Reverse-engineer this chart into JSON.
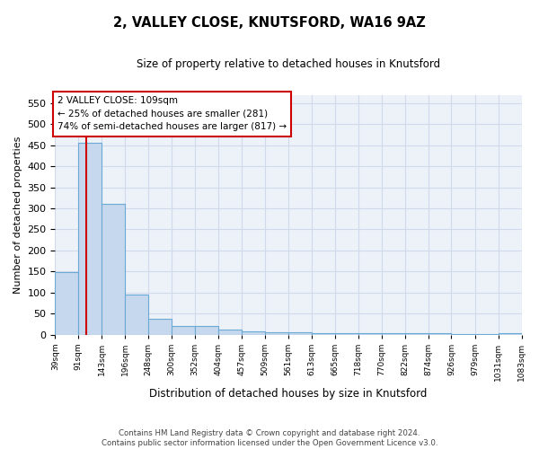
{
  "title_line1": "2, VALLEY CLOSE, KNUTSFORD, WA16 9AZ",
  "title_line2": "Size of property relative to detached houses in Knutsford",
  "xlabel": "Distribution of detached houses by size in Knutsford",
  "ylabel": "Number of detached properties",
  "bin_edges": [
    39,
    91,
    143,
    196,
    248,
    300,
    352,
    404,
    457,
    509,
    561,
    613,
    665,
    718,
    770,
    822,
    874,
    926,
    979,
    1031,
    1083
  ],
  "bar_heights": [
    148,
    455,
    310,
    95,
    38,
    20,
    20,
    12,
    8,
    5,
    5,
    4,
    4,
    4,
    3,
    3,
    3,
    2,
    2,
    3
  ],
  "bar_color": "#c5d8ee",
  "bar_edge_color": "#6aaad4",
  "ylim": [
    0,
    570
  ],
  "yticks": [
    0,
    50,
    100,
    150,
    200,
    250,
    300,
    350,
    400,
    450,
    500,
    550
  ],
  "red_line_x": 109,
  "red_line_color": "#cc0000",
  "annotation_text": "2 VALLEY CLOSE: 109sqm\n← 25% of detached houses are smaller (281)\n74% of semi-detached houses are larger (817) →",
  "annotation_box_color": "#ffffff",
  "annotation_box_edge_color": "#cc0000",
  "footnote": "Contains HM Land Registry data © Crown copyright and database right 2024.\nContains public sector information licensed under the Open Government Licence v3.0.",
  "grid_color": "#d0daea",
  "background_color": "#edf2f9"
}
